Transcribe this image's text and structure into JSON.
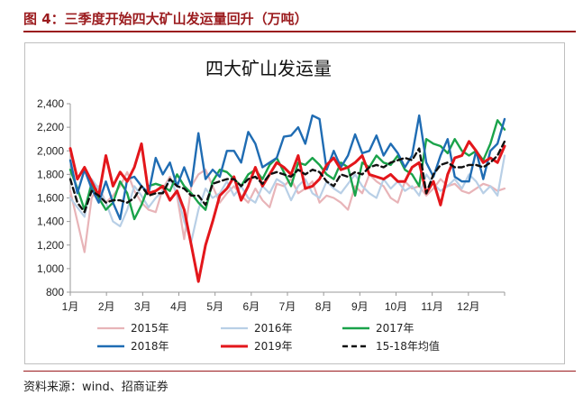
{
  "figure": {
    "title": "图 4：三季度开始四大矿山发运量回升（万吨）",
    "source": "资料来源：wind、招商证券"
  },
  "colors": {
    "accent": "#9b1b1e",
    "axis": "#999999",
    "series": [
      "#e8b4b8",
      "#b8cfe6",
      "#1aa34a",
      "#1f6cb3",
      "#e3161b",
      "#111111"
    ]
  },
  "chart_data": {
    "type": "line",
    "title": "四大矿山发运量",
    "xlabel": "",
    "ylabel": "",
    "ylim": [
      800,
      2400
    ],
    "yticks": [
      800,
      1000,
      1200,
      1400,
      1600,
      1800,
      2000,
      2200,
      2400
    ],
    "ytick_labels": [
      "800",
      "1,000",
      "1,200",
      "1,400",
      "1,600",
      "1,800",
      "2,000",
      "2,200",
      "2,400"
    ],
    "xlim": [
      1,
      13
    ],
    "xticks": [
      1,
      2,
      3,
      4,
      5,
      6,
      7,
      8,
      9,
      10,
      11,
      12
    ],
    "xtick_labels": [
      "1月",
      "2月",
      "3月",
      "4月",
      "5月",
      "6月",
      "7月",
      "8月",
      "9月",
      "10月",
      "11月",
      "12月"
    ],
    "grid": false,
    "legend_position": "bottom",
    "series": [
      {
        "name": "2015年",
        "color": "#e8b4b8",
        "width": 2.2,
        "dash": "",
        "values": [
          1660,
          1400,
          1140,
          1600,
          1700,
          1560,
          1620,
          1700,
          1820,
          1660,
          1560,
          1500,
          1480,
          1680,
          1780,
          1620,
          1250,
          1700,
          1800,
          1840,
          1700,
          1560,
          1640,
          1700,
          1620,
          1560,
          1680,
          1580,
          1520,
          1720,
          1700,
          1760,
          1640,
          1680,
          1740,
          1560,
          1620,
          1600,
          1560,
          1500,
          1700,
          1640,
          1800,
          1740,
          1700,
          1600,
          1560,
          1740,
          1680,
          1700,
          1620,
          1680,
          1760,
          1700,
          1720,
          1660,
          1640,
          1680,
          1720,
          1700,
          1660,
          1680
        ]
      },
      {
        "name": "2016年",
        "color": "#b8cfe6",
        "width": 2.2,
        "dash": "",
        "values": [
          1600,
          1520,
          1440,
          1760,
          1680,
          1560,
          1400,
          1360,
          1500,
          1700,
          1620,
          1520,
          1600,
          1660,
          1760,
          1640,
          1400,
          1230,
          1500,
          1680,
          1600,
          1640,
          1740,
          1620,
          1700,
          1600,
          1560,
          1700,
          1640,
          1760,
          1720,
          1580,
          1700,
          1760,
          1640,
          1600,
          1740,
          1680,
          1640,
          1720,
          1800,
          1700,
          1640,
          1600,
          1760,
          1680,
          1740,
          1660,
          1700,
          1620,
          1800,
          1720,
          1660,
          1700,
          1760,
          1680,
          1800,
          1740,
          1640,
          1700,
          1620,
          1960
        ]
      },
      {
        "name": "2017年",
        "color": "#1aa34a",
        "width": 2.4,
        "dash": "",
        "values": [
          1840,
          1680,
          1500,
          1720,
          1600,
          1500,
          1560,
          1740,
          1640,
          1420,
          1540,
          1700,
          1720,
          1700,
          1660,
          1800,
          1700,
          1640,
          1560,
          1500,
          1740,
          1840,
          1820,
          1760,
          1700,
          1800,
          1840,
          1760,
          1880,
          1940,
          1820,
          1700,
          1900,
          1880,
          1940,
          1880,
          1800,
          1760,
          1900,
          1860,
          1620,
          1900,
          1860,
          1960,
          1900,
          1880,
          1960,
          1840,
          1800,
          1700,
          2100,
          2060,
          2040,
          1980,
          2100,
          2000,
          1960,
          2000,
          1920,
          2060,
          2260,
          2180
        ]
      },
      {
        "name": "2018年",
        "color": "#1f6cb3",
        "width": 2.4,
        "dash": "",
        "values": [
          1920,
          1640,
          1840,
          1680,
          1560,
          1740,
          1560,
          1420,
          1760,
          1780,
          1700,
          1640,
          1940,
          1800,
          1900,
          1700,
          1860,
          1700,
          2150,
          1760,
          1840,
          1780,
          2000,
          2000,
          1900,
          2160,
          2060,
          1860,
          1900,
          1940,
          2120,
          2130,
          2200,
          2060,
          2300,
          2270,
          1840,
          2000,
          1860,
          1960,
          2140,
          1980,
          2000,
          2130,
          1960,
          2060,
          1980,
          1860,
          1960,
          2300,
          1900,
          1780,
          1960,
          2100,
          1780,
          1740,
          1740,
          2000,
          1760,
          2000,
          2060,
          2270
        ]
      },
      {
        "name": "2019年",
        "color": "#e3161b",
        "width": 3.0,
        "dash": "",
        "values": [
          2020,
          1760,
          1860,
          1740,
          1620,
          1960,
          1700,
          1820,
          1740,
          1860,
          2060,
          1640,
          1660,
          1700,
          1580,
          1660,
          1500,
          1200,
          890,
          1200,
          1400,
          1620,
          1680,
          1780,
          1580,
          1700,
          1860,
          1700,
          1800,
          1900,
          1860,
          1800,
          1960,
          1680,
          1700,
          1760,
          1880,
          1940,
          1840,
          1860,
          1900,
          1960,
          1800,
          1780,
          1760,
          1800,
          1740,
          1740,
          1860,
          1900,
          1640,
          1740,
          1540,
          1800,
          1940,
          1960,
          2080,
          2000,
          1900,
          1940,
          1900,
          2040
        ]
      },
      {
        "name": "15-18年均值",
        "color": "#111111",
        "width": 2.4,
        "dash": "6,4",
        "values": [
          1760,
          1560,
          1480,
          1660,
          1620,
          1560,
          1580,
          1580,
          1560,
          1600,
          1700,
          1620,
          1640,
          1640,
          1760,
          1700,
          1680,
          1620,
          1620,
          1540,
          1720,
          1740,
          1760,
          1760,
          1700,
          1760,
          1780,
          1720,
          1800,
          1820,
          1800,
          1780,
          1840,
          1800,
          1840,
          1820,
          1740,
          1700,
          1800,
          1780,
          1820,
          1800,
          1860,
          1880,
          1860,
          1900,
          1920,
          1940,
          1920,
          2020,
          1640,
          1800,
          1880,
          1900,
          1860,
          1860,
          1880,
          1880,
          1860,
          1900,
          1960,
          2080
        ]
      }
    ]
  }
}
